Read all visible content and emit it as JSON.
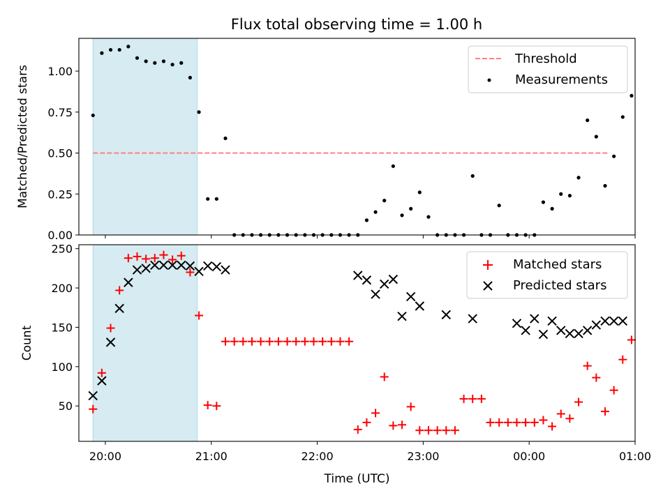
{
  "figure": {
    "title": "Flux total observing time = 1.00 h",
    "xlabel": "Time (UTC)"
  },
  "colors": {
    "highlight": "#add8e6",
    "threshold": "#ff7f7f",
    "matched": "#ff0000",
    "predicted": "#000000",
    "measurements": "#000000"
  },
  "chart_data": [
    {
      "type": "scatter",
      "title": "Flux total observing time = 1.00 h",
      "xlabel": "",
      "ylabel": "Matched/Predicted stars",
      "xlim": [
        "19:45",
        "01:00"
      ],
      "ylim": [
        0,
        1.2
      ],
      "yticks": [
        0.0,
        0.25,
        0.5,
        0.75,
        1.0
      ],
      "ytick_labels": [
        "0.00",
        "0.25",
        "0.50",
        "0.75",
        "1.00"
      ],
      "highlight_span": [
        "19:53",
        "20:52"
      ],
      "legend": {
        "position": "upper right",
        "entries": [
          "Threshold",
          "Measurements"
        ]
      },
      "threshold": {
        "name": "Threshold",
        "y": 0.5,
        "x": [
          "19:53",
          "00:45"
        ]
      },
      "series": [
        {
          "name": "Measurements",
          "x": [
            "19:53",
            "19:58",
            "20:03",
            "20:08",
            "20:13",
            "20:18",
            "20:23",
            "20:28",
            "20:33",
            "20:38",
            "20:43",
            "20:48",
            "20:53",
            "20:58",
            "21:03",
            "21:08",
            "21:13",
            "21:18",
            "21:23",
            "21:28",
            "21:33",
            "21:38",
            "21:43",
            "21:48",
            "21:53",
            "21:58",
            "22:03",
            "22:08",
            "22:13",
            "22:18",
            "22:23",
            "22:28",
            "22:33",
            "22:38",
            "22:43",
            "22:48",
            "22:53",
            "22:58",
            "23:03",
            "23:08",
            "23:13",
            "23:18",
            "23:23",
            "23:28",
            "23:33",
            "23:38",
            "23:43",
            "23:48",
            "23:53",
            "23:58",
            "00:03",
            "00:08",
            "00:13",
            "00:18",
            "00:23",
            "00:28",
            "00:33",
            "00:38",
            "00:43",
            "00:48"
          ],
          "y": [
            0.73,
            1.11,
            1.13,
            1.13,
            1.15,
            1.08,
            1.06,
            1.05,
            1.06,
            1.04,
            1.05,
            0.96,
            0.75,
            0.22,
            0.22,
            0.59,
            0,
            0,
            0,
            0,
            0,
            0,
            0,
            0,
            0,
            0,
            0,
            0,
            0,
            0,
            0,
            0.09,
            0.14,
            0.21,
            0.42,
            0.12,
            0.16,
            0.26,
            0.11,
            0,
            0,
            0,
            0,
            0.36,
            0,
            0,
            0.18,
            0,
            0,
            0,
            0,
            0.2,
            0.16,
            0.25,
            0.24,
            0.35,
            0.7,
            0.6,
            0.3,
            0.48
          ]
        }
      ],
      "extra_points": {
        "x": [
          "00:53",
          "00:58"
        ],
        "y": [
          0.72,
          0.85
        ]
      }
    },
    {
      "type": "scatter",
      "xlabel": "Time (UTC)",
      "ylabel": "Count",
      "xlim": [
        "19:45",
        "01:00"
      ],
      "ylim": [
        5,
        255
      ],
      "yticks": [
        50,
        100,
        150,
        200,
        250
      ],
      "ytick_labels": [
        "50",
        "100",
        "150",
        "200",
        "250"
      ],
      "xtick_labels": [
        "20:00",
        "21:00",
        "22:00",
        "23:00",
        "00:00",
        "01:00"
      ],
      "highlight_span": [
        "19:53",
        "20:52"
      ],
      "legend": {
        "position": "upper right",
        "entries": [
          "Matched stars",
          "Predicted stars"
        ]
      },
      "series": [
        {
          "name": "Matched stars",
          "marker": "plus",
          "x": [
            "19:53",
            "19:58",
            "20:03",
            "20:08",
            "20:13",
            "20:18",
            "20:23",
            "20:28",
            "20:33",
            "20:38",
            "20:43",
            "20:48",
            "20:53",
            "20:58",
            "21:03",
            "21:08",
            "21:13",
            "21:18",
            "21:23",
            "21:28",
            "21:33",
            "21:38",
            "21:43",
            "21:48",
            "21:53",
            "21:58",
            "22:03",
            "22:08",
            "22:13",
            "22:18",
            "22:23",
            "22:28",
            "22:33",
            "22:38",
            "22:43",
            "22:48",
            "22:53",
            "22:58",
            "23:03",
            "23:08",
            "23:13",
            "23:18",
            "23:23",
            "23:28",
            "23:33",
            "23:38",
            "23:43",
            "23:48",
            "23:53",
            "23:58",
            "00:03",
            "00:08",
            "00:13",
            "00:18",
            "00:23",
            "00:28",
            "00:33",
            "00:38",
            "00:43",
            "00:48",
            "00:53",
            "00:58"
          ],
          "y": [
            46,
            92,
            149,
            197,
            238,
            240,
            237,
            238,
            242,
            236,
            241,
            220,
            165,
            51,
            50,
            132,
            132,
            132,
            132,
            132,
            132,
            132,
            132,
            132,
            132,
            132,
            132,
            132,
            132,
            132,
            20,
            29,
            41,
            87,
            25,
            26,
            49,
            19,
            19,
            19,
            19,
            19,
            59,
            59,
            59,
            29,
            29,
            29,
            29,
            29,
            29,
            32,
            24,
            40,
            34,
            55,
            101,
            86,
            43,
            70,
            109,
            134
          ]
        },
        {
          "name": "Predicted stars",
          "marker": "x",
          "x": [
            "19:53",
            "19:58",
            "20:03",
            "20:08",
            "20:13",
            "20:18",
            "20:23",
            "20:28",
            "20:33",
            "20:38",
            "20:43",
            "20:48",
            "20:53",
            "20:58",
            "21:03",
            "21:08",
            "22:23",
            "22:28",
            "22:33",
            "22:38",
            "22:43",
            "22:48",
            "22:53",
            "22:58",
            "23:13",
            "23:28",
            "23:53",
            "23:58",
            "00:03",
            "00:08",
            "00:13",
            "00:18",
            "00:23",
            "00:28",
            "00:33",
            "00:38",
            "00:43",
            "00:48",
            "00:53"
          ],
          "y": [
            63,
            82,
            131,
            174,
            207,
            223,
            225,
            229,
            229,
            229,
            229,
            228,
            221,
            228,
            227,
            223,
            216,
            210,
            192,
            205,
            211,
            164,
            189,
            177,
            166,
            161,
            155,
            146,
            161,
            141,
            158,
            146,
            142,
            142,
            146,
            153,
            158,
            158,
            158
          ]
        }
      ]
    }
  ]
}
